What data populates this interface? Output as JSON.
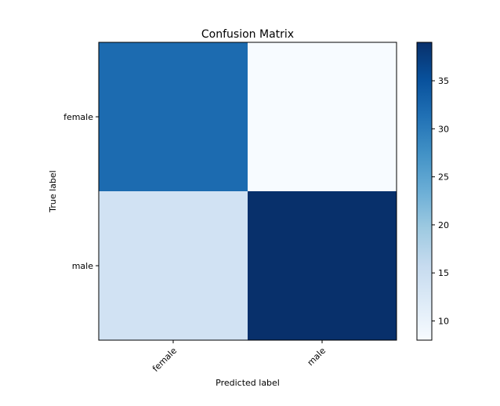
{
  "chart_data": {
    "type": "heatmap",
    "title": "Confusion Matrix",
    "xlabel": "Predicted label",
    "ylabel": "True label",
    "x_categories": [
      "female",
      "male"
    ],
    "y_categories": [
      "female",
      "male"
    ],
    "values": [
      [
        32,
        8
      ],
      [
        14,
        39
      ]
    ],
    "colormap": "Blues",
    "colorbar": {
      "range": [
        8,
        39
      ],
      "ticks": [
        "10",
        "15",
        "20",
        "25",
        "30",
        "35"
      ]
    },
    "x_tick_rotation_deg": 45,
    "grid": false
  }
}
